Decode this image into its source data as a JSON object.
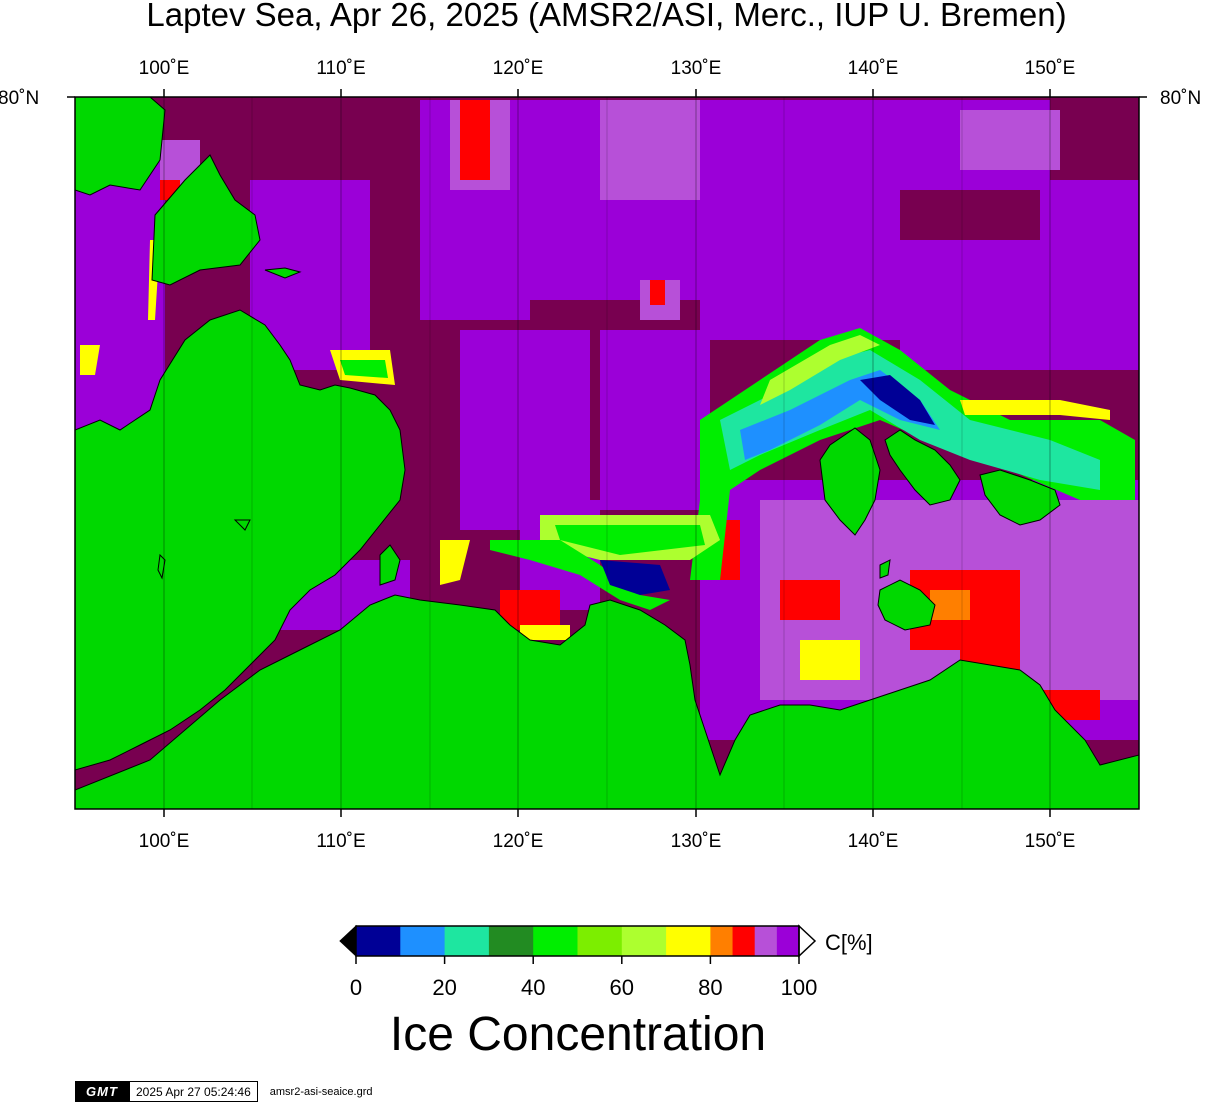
{
  "title": "Laptev Sea, Apr 26, 2025 (AMSR2/ASI, Merc., IUP U. Bremen)",
  "map": {
    "region": "Laptev Sea",
    "projection": "Mercator",
    "lon_range": [
      95,
      155
    ],
    "lat_top_label": "80˚N",
    "lon_ticks": [
      {
        "lon": 100,
        "label": "100˚E"
      },
      {
        "lon": 110,
        "label": "110˚E"
      },
      {
        "lon": 120,
        "label": "120˚E"
      },
      {
        "lon": 130,
        "label": "130˚E"
      },
      {
        "lon": 140,
        "label": "140˚E"
      },
      {
        "lon": 150,
        "label": "150˚E"
      }
    ],
    "colors": {
      "land": "#00d800",
      "ice_100": "#780050",
      "ice_95": "#9b00d8",
      "ice_90": "#b750d8"
    }
  },
  "colorbar": {
    "unit_label": "C[%]",
    "title": "Ice Concentration",
    "tick_labels": [
      "0",
      "20",
      "40",
      "60",
      "80",
      "100"
    ],
    "bins": [
      {
        "from": 0,
        "to": 10,
        "color": "#000096"
      },
      {
        "from": 10,
        "to": 20,
        "color": "#1e90ff"
      },
      {
        "from": 20,
        "to": 30,
        "color": "#1ee6a0"
      },
      {
        "from": 30,
        "to": 40,
        "color": "#228b22"
      },
      {
        "from": 40,
        "to": 50,
        "color": "#00ee00"
      },
      {
        "from": 50,
        "to": 60,
        "color": "#7cee00"
      },
      {
        "from": 60,
        "to": 70,
        "color": "#adff2f"
      },
      {
        "from": 70,
        "to": 80,
        "color": "#ffff00"
      },
      {
        "from": 80,
        "to": 85,
        "color": "#ff7f00"
      },
      {
        "from": 85,
        "to": 90,
        "color": "#ff0000"
      },
      {
        "from": 90,
        "to": 95,
        "color": "#b750d8"
      },
      {
        "from": 95,
        "to": 100,
        "color": "#9b00d8"
      }
    ],
    "low_triangle_color": "#000000",
    "high_triangle_color": "#ffffff"
  },
  "footer": {
    "logo": "GMT",
    "timestamp": "2025 Apr 27 05:24:46",
    "filename": "amsr2-asi-seaice.grd"
  }
}
